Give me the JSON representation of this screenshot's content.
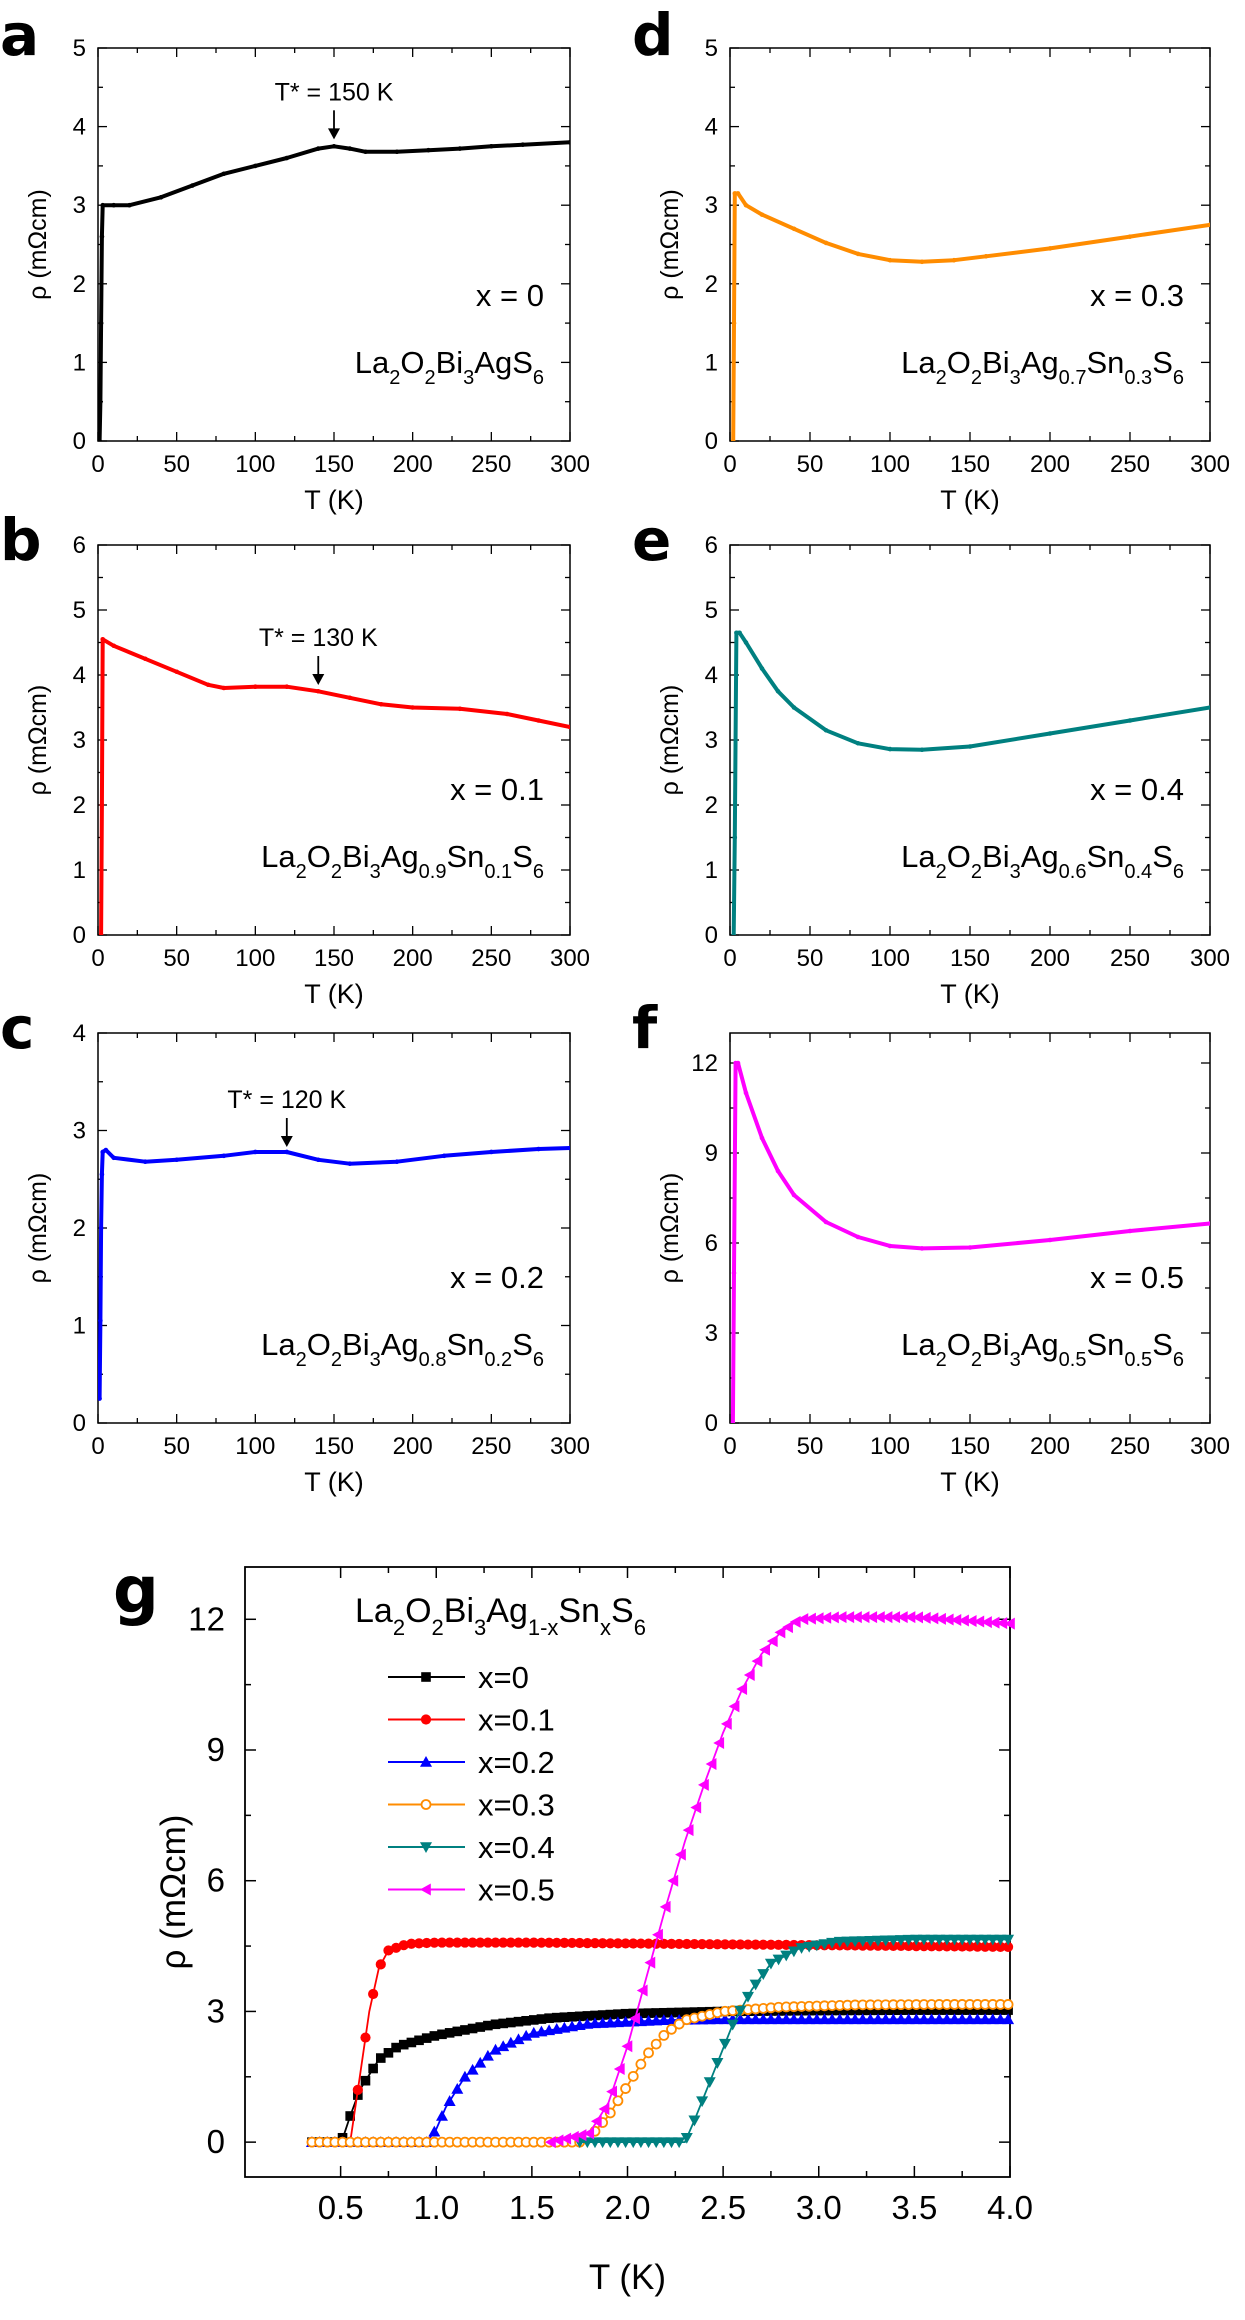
{
  "chart_data": [
    {
      "id": "a",
      "type": "line",
      "panel_label": "a",
      "color": "#000000",
      "xlabel": "T (K)",
      "ylabel": "ρ (mΩcm)",
      "xlim": [
        0,
        300
      ],
      "ylim": [
        0,
        5
      ],
      "xticks": [
        "0",
        "50",
        "100",
        "150",
        "200",
        "250",
        "300"
      ],
      "yticks": [
        "0",
        "1",
        "2",
        "3",
        "4",
        "5"
      ],
      "annotation": "T* = 150 K",
      "arrow_at": [
        150,
        3.8
      ],
      "label_x": "x = 0",
      "label_formula": "La2O2Bi3AgS6",
      "curve": [
        [
          1,
          0
        ],
        [
          1.5,
          0.5
        ],
        [
          2,
          1.5
        ],
        [
          2.5,
          2.6
        ],
        [
          3,
          3.0
        ],
        [
          10,
          3.0
        ],
        [
          20,
          3.0
        ],
        [
          40,
          3.1
        ],
        [
          60,
          3.25
        ],
        [
          80,
          3.4
        ],
        [
          100,
          3.5
        ],
        [
          120,
          3.6
        ],
        [
          140,
          3.72
        ],
        [
          150,
          3.75
        ],
        [
          160,
          3.72
        ],
        [
          170,
          3.68
        ],
        [
          190,
          3.68
        ],
        [
          210,
          3.7
        ],
        [
          230,
          3.72
        ],
        [
          250,
          3.75
        ],
        [
          270,
          3.77
        ],
        [
          300,
          3.8
        ]
      ]
    },
    {
      "id": "b",
      "type": "line",
      "panel_label": "b",
      "color": "#ff0000",
      "xlabel": "T (K)",
      "ylabel": "ρ (mΩcm)",
      "xlim": [
        0,
        300
      ],
      "ylim": [
        0,
        6
      ],
      "xticks": [
        "0",
        "50",
        "100",
        "150",
        "200",
        "250",
        "300"
      ],
      "yticks": [
        "0",
        "1",
        "2",
        "3",
        "4",
        "5",
        "6"
      ],
      "annotation": "T* = 130 K",
      "arrow_at": [
        140,
        3.8
      ],
      "label_x": "x = 0.1",
      "label_formula": "La2O2Bi3Ag0.9Sn0.1S6",
      "curve": [
        [
          2,
          0
        ],
        [
          2.5,
          2
        ],
        [
          3,
          4.55
        ],
        [
          10,
          4.45
        ],
        [
          30,
          4.25
        ],
        [
          50,
          4.05
        ],
        [
          70,
          3.85
        ],
        [
          80,
          3.8
        ],
        [
          100,
          3.82
        ],
        [
          120,
          3.82
        ],
        [
          140,
          3.75
        ],
        [
          160,
          3.65
        ],
        [
          180,
          3.55
        ],
        [
          200,
          3.5
        ],
        [
          230,
          3.48
        ],
        [
          260,
          3.4
        ],
        [
          280,
          3.3
        ],
        [
          300,
          3.2
        ]
      ]
    },
    {
      "id": "c",
      "type": "line",
      "panel_label": "c",
      "color": "#0000ff",
      "xlabel": "T (K)",
      "ylabel": "ρ (mΩcm)",
      "xlim": [
        0,
        300
      ],
      "ylim": [
        0,
        4
      ],
      "xticks": [
        "0",
        "50",
        "100",
        "150",
        "200",
        "250",
        "300"
      ],
      "yticks": [
        "0",
        "1",
        "2",
        "3",
        "4"
      ],
      "annotation": "T* = 120 K",
      "arrow_at": [
        120,
        2.8
      ],
      "label_x": "x = 0.2",
      "label_formula": "La2O2Bi3Ag0.8Sn0.2S6",
      "curve": [
        [
          1,
          0.25
        ],
        [
          1.5,
          1.05
        ],
        [
          2,
          2.0
        ],
        [
          2.5,
          2.55
        ],
        [
          3,
          2.78
        ],
        [
          5,
          2.8
        ],
        [
          10,
          2.72
        ],
        [
          30,
          2.68
        ],
        [
          50,
          2.7
        ],
        [
          80,
          2.74
        ],
        [
          100,
          2.78
        ],
        [
          120,
          2.78
        ],
        [
          140,
          2.7
        ],
        [
          160,
          2.66
        ],
        [
          190,
          2.68
        ],
        [
          220,
          2.74
        ],
        [
          250,
          2.78
        ],
        [
          280,
          2.81
        ],
        [
          300,
          2.82
        ]
      ]
    },
    {
      "id": "d",
      "type": "line",
      "panel_label": "d",
      "color": "#ff8c00",
      "xlabel": "T (K)",
      "ylabel": "ρ (mΩcm)",
      "xlim": [
        0,
        300
      ],
      "ylim": [
        0,
        5
      ],
      "xticks": [
        "0",
        "50",
        "100",
        "150",
        "200",
        "250",
        "300"
      ],
      "yticks": [
        "0",
        "1",
        "2",
        "3",
        "4",
        "5"
      ],
      "annotation": "",
      "arrow_at": null,
      "label_x": "x = 0.3",
      "label_formula": "La2O2Bi3Ag0.7Sn0.3S6",
      "curve": [
        [
          2,
          0
        ],
        [
          2.5,
          1.5
        ],
        [
          3,
          3.15
        ],
        [
          5,
          3.15
        ],
        [
          10,
          3.0
        ],
        [
          20,
          2.88
        ],
        [
          40,
          2.7
        ],
        [
          60,
          2.52
        ],
        [
          80,
          2.38
        ],
        [
          100,
          2.3
        ],
        [
          120,
          2.28
        ],
        [
          140,
          2.3
        ],
        [
          160,
          2.35
        ],
        [
          200,
          2.45
        ],
        [
          250,
          2.6
        ],
        [
          300,
          2.75
        ]
      ]
    },
    {
      "id": "e",
      "type": "line",
      "panel_label": "e",
      "color": "#008080",
      "xlabel": "T (K)",
      "ylabel": "ρ (mΩcm)",
      "xlim": [
        0,
        300
      ],
      "ylim": [
        0,
        6
      ],
      "xticks": [
        "0",
        "50",
        "100",
        "150",
        "200",
        "250",
        "300"
      ],
      "yticks": [
        "0",
        "1",
        "2",
        "3",
        "4",
        "5",
        "6"
      ],
      "annotation": "",
      "arrow_at": null,
      "label_x": "x = 0.4",
      "label_formula": "La2O2Bi3Ag0.6Sn0.4S6",
      "curve": [
        [
          2.3,
          0
        ],
        [
          3,
          1.5
        ],
        [
          4,
          4.65
        ],
        [
          6,
          4.65
        ],
        [
          10,
          4.5
        ],
        [
          20,
          4.1
        ],
        [
          30,
          3.75
        ],
        [
          40,
          3.5
        ],
        [
          60,
          3.15
        ],
        [
          80,
          2.95
        ],
        [
          100,
          2.86
        ],
        [
          120,
          2.85
        ],
        [
          150,
          2.9
        ],
        [
          200,
          3.1
        ],
        [
          250,
          3.3
        ],
        [
          300,
          3.5
        ]
      ]
    },
    {
      "id": "f",
      "type": "line",
      "panel_label": "f",
      "color": "#ff00ff",
      "xlabel": "T (K)",
      "ylabel": "ρ (mΩcm)",
      "xlim": [
        0,
        300
      ],
      "ylim": [
        0,
        13
      ],
      "xticks": [
        "0",
        "50",
        "100",
        "150",
        "200",
        "250",
        "300"
      ],
      "yticks": [
        "0",
        "3",
        "6",
        "9",
        "12"
      ],
      "annotation": "",
      "arrow_at": null,
      "label_x": "x = 0.5",
      "label_formula": "La2O2Bi3Ag0.5Sn0.5S6",
      "curve": [
        [
          1.8,
          0
        ],
        [
          2.5,
          5
        ],
        [
          3.5,
          12.0
        ],
        [
          5,
          12.0
        ],
        [
          10,
          11.0
        ],
        [
          20,
          9.5
        ],
        [
          30,
          8.4
        ],
        [
          40,
          7.6
        ],
        [
          60,
          6.7
        ],
        [
          80,
          6.2
        ],
        [
          100,
          5.9
        ],
        [
          120,
          5.82
        ],
        [
          150,
          5.85
        ],
        [
          200,
          6.1
        ],
        [
          250,
          6.4
        ],
        [
          300,
          6.65
        ]
      ]
    },
    {
      "id": "g",
      "type": "line",
      "panel_label": "g",
      "xlabel": "T (K)",
      "ylabel": "ρ (mΩcm)",
      "xlim": [
        0,
        4
      ],
      "ylim": [
        -0.8,
        13.2
      ],
      "xticks": [
        "0.5",
        "1.0",
        "1.5",
        "2.0",
        "2.5",
        "3.0",
        "3.5",
        "4.0"
      ],
      "yticks": [
        "0",
        "3",
        "6",
        "9",
        "12"
      ],
      "legend_title": "La2O2Bi3Ag1-xSnxS6",
      "series": [
        {
          "name": "x=0",
          "color": "#000000",
          "marker": "square",
          "points": [
            [
              0.35,
              0
            ],
            [
              0.5,
              0
            ],
            [
              0.52,
              0.2
            ],
            [
              0.55,
              0.6
            ],
            [
              0.6,
              1.2
            ],
            [
              0.7,
              1.9
            ],
            [
              0.8,
              2.2
            ],
            [
              1.0,
              2.45
            ],
            [
              1.3,
              2.7
            ],
            [
              1.6,
              2.85
            ],
            [
              2.0,
              2.95
            ],
            [
              2.5,
              3.0
            ],
            [
              3.0,
              3.02
            ],
            [
              3.5,
              3.03
            ],
            [
              4.0,
              3.03
            ]
          ]
        },
        {
          "name": "x=0.1",
          "color": "#ff0000",
          "marker": "circle",
          "points": [
            [
              0.35,
              0
            ],
            [
              0.55,
              0
            ],
            [
              0.6,
              1.5
            ],
            [
              0.65,
              3.0
            ],
            [
              0.7,
              4.0
            ],
            [
              0.75,
              4.4
            ],
            [
              0.85,
              4.55
            ],
            [
              1.0,
              4.58
            ],
            [
              1.5,
              4.58
            ],
            [
              2.0,
              4.56
            ],
            [
              2.5,
              4.54
            ],
            [
              3.0,
              4.52
            ],
            [
              3.5,
              4.5
            ],
            [
              4.0,
              4.48
            ]
          ]
        },
        {
          "name": "x=0.2",
          "color": "#0000ff",
          "marker": "triangle-up",
          "points": [
            [
              0.35,
              0
            ],
            [
              0.95,
              0
            ],
            [
              1.0,
              0.3
            ],
            [
              1.05,
              0.8
            ],
            [
              1.15,
              1.5
            ],
            [
              1.3,
              2.1
            ],
            [
              1.5,
              2.5
            ],
            [
              1.8,
              2.72
            ],
            [
              2.2,
              2.8
            ],
            [
              2.5,
              2.82
            ],
            [
              3.0,
              2.82
            ],
            [
              3.5,
              2.82
            ],
            [
              4.0,
              2.82
            ]
          ]
        },
        {
          "name": "x=0.3",
          "color": "#ff8c00",
          "marker": "circle-open",
          "points": [
            [
              0.35,
              0
            ],
            [
              1.75,
              0
            ],
            [
              1.8,
              0.1
            ],
            [
              1.9,
              0.6
            ],
            [
              2.0,
              1.3
            ],
            [
              2.1,
              2.0
            ],
            [
              2.2,
              2.5
            ],
            [
              2.3,
              2.8
            ],
            [
              2.5,
              3.0
            ],
            [
              2.8,
              3.1
            ],
            [
              3.2,
              3.15
            ],
            [
              3.6,
              3.16
            ],
            [
              4.0,
              3.16
            ]
          ]
        },
        {
          "name": "x=0.4",
          "color": "#008080",
          "marker": "triangle-down",
          "points": [
            [
              1.75,
              0
            ],
            [
              2.3,
              0
            ],
            [
              2.35,
              0.5
            ],
            [
              2.45,
              1.6
            ],
            [
              2.55,
              2.7
            ],
            [
              2.65,
              3.5
            ],
            [
              2.75,
              4.1
            ],
            [
              2.9,
              4.45
            ],
            [
              3.1,
              4.6
            ],
            [
              3.5,
              4.65
            ],
            [
              4.0,
              4.65
            ]
          ]
        },
        {
          "name": "x=0.5",
          "color": "#ff00ff",
          "marker": "triangle-left",
          "points": [
            [
              1.6,
              0
            ],
            [
              1.8,
              0.2
            ],
            [
              1.9,
              0.9
            ],
            [
              2.0,
              2.2
            ],
            [
              2.1,
              3.8
            ],
            [
              2.2,
              5.4
            ],
            [
              2.3,
              6.9
            ],
            [
              2.4,
              8.2
            ],
            [
              2.5,
              9.4
            ],
            [
              2.6,
              10.4
            ],
            [
              2.7,
              11.2
            ],
            [
              2.8,
              11.7
            ],
            [
              2.9,
              12.0
            ],
            [
              3.1,
              12.05
            ],
            [
              3.5,
              12.05
            ],
            [
              4.0,
              11.9
            ]
          ]
        }
      ]
    }
  ]
}
